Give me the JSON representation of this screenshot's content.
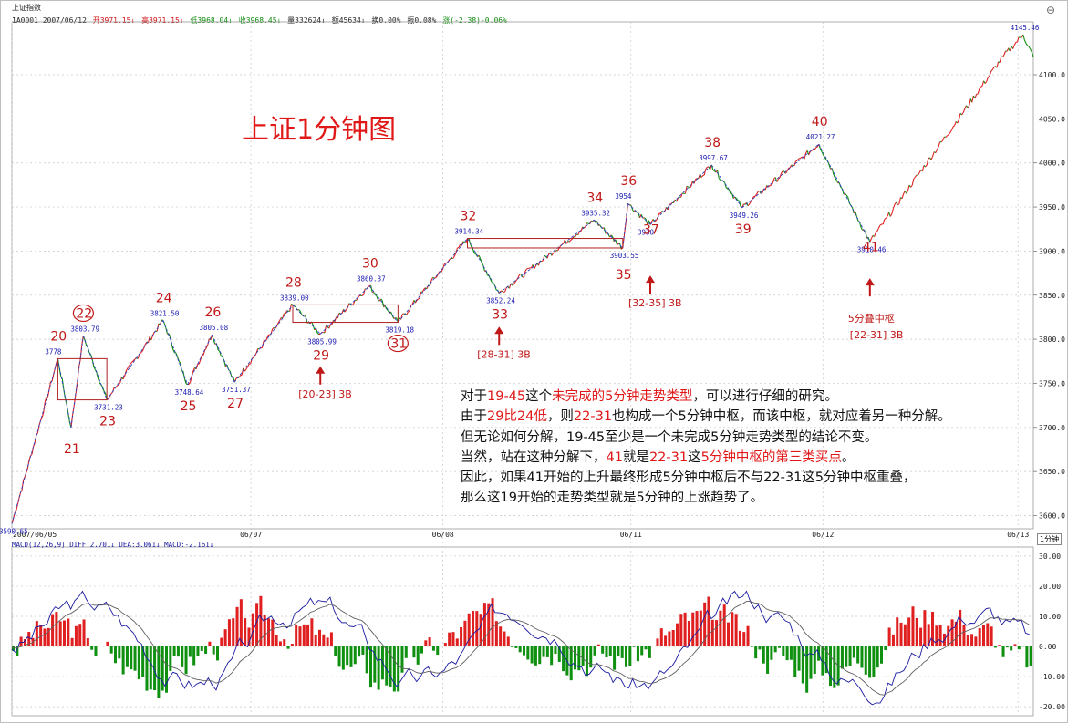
{
  "window": {
    "title": "上证指数"
  },
  "header": {
    "code_date": "1A0001 2007/06/12",
    "open": "开3971.15↓",
    "high": "高3971.15↓",
    "low": "低3968.04↓",
    "close": "收3968.45↓",
    "volume": "量332624↓",
    "amount": "额45634↓",
    "turnover": "换0.00%",
    "amplitude": "振0.08%",
    "change": "涨(-2.38)-0.06%"
  },
  "title_overlay": "上证1分钟图",
  "period_label": "1分钟",
  "macd_header": "MACD(12,26,9) DIFF:2.701↓ DEA:3.061↓ MACD:-2.161↓",
  "notes": [
    [
      {
        "t": "对于"
      },
      {
        "t": "19-45",
        "r": true
      },
      {
        "t": "这个"
      },
      {
        "t": "未完成的5分钟走势类型",
        "r": true
      },
      {
        "t": "，可以进行仔细的研究。"
      }
    ],
    [
      {
        "t": "由于"
      },
      {
        "t": "29比24低",
        "r": true
      },
      {
        "t": "，则"
      },
      {
        "t": "22-31",
        "r": true
      },
      {
        "t": "也构成一个5分钟中枢，而该中枢，就对应着另一种分解。"
      }
    ],
    [
      {
        "t": "但无论如何分解，19-45至少是一个未完成5分钟走势类型的结论不变。"
      }
    ],
    [
      {
        "t": "当然，站在这种分解下，"
      },
      {
        "t": "41",
        "r": true
      },
      {
        "t": "就是"
      },
      {
        "t": "22-31",
        "r": true
      },
      {
        "t": "这"
      },
      {
        "t": "5分钟中枢的第三类买点",
        "r": true
      },
      {
        "t": "。"
      }
    ],
    [
      {
        "t": "因此，如果41开始的上升最终形成5分钟中枢后不与22-31这5分钟中枢重叠，"
      }
    ],
    [
      {
        "t": "那么这19开始的走势类型就是5分钟的上涨趋势了。"
      }
    ]
  ],
  "colors": {
    "up": "#e02020",
    "down": "#109010",
    "label": "#c01818",
    "price": "#1a1ab0",
    "diff": "#1a1aa0",
    "dea": "#606060",
    "grid": "#c8c8c8"
  },
  "chart_data": [
    {
      "type": "line",
      "title": "上证1分钟图",
      "x_ticks": [
        "2007/06/05",
        "06/07",
        "06/08",
        "06/11",
        "06/12",
        "06/13"
      ],
      "y_ticks": [
        3600.0,
        3650.0,
        3700.0,
        3750.0,
        3800.0,
        3850.0,
        3900.0,
        3950.0,
        4000.0,
        4050.0,
        4100.0
      ],
      "ylim": [
        3585,
        4160
      ],
      "grid": true,
      "wave_points": [
        {
          "x": 0.0,
          "y": 3590.65,
          "label": "",
          "price": "3590.65"
        },
        {
          "x": 0.045,
          "y": 3778,
          "label": "20",
          "price": "3778"
        },
        {
          "x": 0.058,
          "y": 3700,
          "label": "21",
          "price": ""
        },
        {
          "x": 0.07,
          "y": 3803.79,
          "label": "22",
          "price": "3803.79",
          "circled": true
        },
        {
          "x": 0.093,
          "y": 3731.23,
          "label": "23",
          "price": "3731.23"
        },
        {
          "x": 0.148,
          "y": 3821.5,
          "label": "24",
          "price": "3821.50"
        },
        {
          "x": 0.172,
          "y": 3748.64,
          "label": "25",
          "price": "3748.64"
        },
        {
          "x": 0.196,
          "y": 3805.08,
          "label": "26",
          "price": "3805.08"
        },
        {
          "x": 0.218,
          "y": 3751.37,
          "label": "27",
          "price": "3751.37"
        },
        {
          "x": 0.275,
          "y": 3839.0,
          "label": "28",
          "price": "3839.00"
        },
        {
          "x": 0.302,
          "y": 3805.99,
          "label": "29",
          "price": "3805.99"
        },
        {
          "x": 0.35,
          "y": 3860.37,
          "label": "30",
          "price": "3860.37"
        },
        {
          "x": 0.378,
          "y": 3819.18,
          "label": "31",
          "price": "3819.18",
          "circled": true
        },
        {
          "x": 0.446,
          "y": 3914.34,
          "label": "32",
          "price": "3914.34"
        },
        {
          "x": 0.477,
          "y": 3852.24,
          "label": "33",
          "price": "3852.24"
        },
        {
          "x": 0.57,
          "y": 3935.32,
          "label": "34",
          "price": "3935.32"
        },
        {
          "x": 0.598,
          "y": 3903.55,
          "label": "35",
          "price": "3903.55"
        },
        {
          "x": 0.603,
          "y": 3954,
          "label": "36",
          "price": "3954"
        },
        {
          "x": 0.625,
          "y": 3930,
          "label": "37",
          "price": "3930"
        },
        {
          "x": 0.685,
          "y": 3997.67,
          "label": "38",
          "price": "3997.67"
        },
        {
          "x": 0.715,
          "y": 3949.26,
          "label": "39",
          "price": "3949.26"
        },
        {
          "x": 0.79,
          "y": 4021.27,
          "label": "40",
          "price": "4021.27"
        },
        {
          "x": 0.84,
          "y": 3910.46,
          "label": "41",
          "price": "3910.46"
        },
        {
          "x": 0.97,
          "y": 4120,
          "label": "",
          "price": ""
        },
        {
          "x": 0.99,
          "y": 4145.46,
          "label": "",
          "price": "4145.46"
        },
        {
          "x": 1.0,
          "y": 4120,
          "label": "",
          "price": ""
        }
      ],
      "zones": [
        {
          "y0": 3731.23,
          "y1": 3778.0,
          "x0": 0.045,
          "x1": 0.093
        },
        {
          "y0": 3819.18,
          "y1": 3839.0,
          "x0": 0.275,
          "x1": 0.378
        },
        {
          "y0": 3903.55,
          "y1": 3914.34,
          "x0": 0.446,
          "x1": 0.598
        }
      ],
      "annotations": [
        {
          "text": "[20-23] 3B",
          "at": 0.302,
          "y": 3790
        },
        {
          "text": "[28-31] 3B",
          "at": 0.477,
          "y": 3835
        },
        {
          "text": "[32-35] 3B",
          "at": 0.625,
          "y": 3893
        },
        {
          "text": "5分叠中枢",
          "at": 0.84,
          "y": 3892
        },
        {
          "text": "[22-31] 3B",
          "at": 0.84,
          "y": 3892
        }
      ]
    },
    {
      "type": "bar",
      "title": "MACD(12,26,9)",
      "series": [
        {
          "name": "DIFF",
          "value_last": 2.701
        },
        {
          "name": "DEA",
          "value_last": 3.061
        },
        {
          "name": "MACD",
          "value_last": -2.161
        }
      ],
      "y_ticks": [
        -20.0,
        -10.0,
        0.0,
        10.0,
        20.0,
        30.0
      ],
      "ylim": [
        -23,
        33
      ]
    }
  ]
}
